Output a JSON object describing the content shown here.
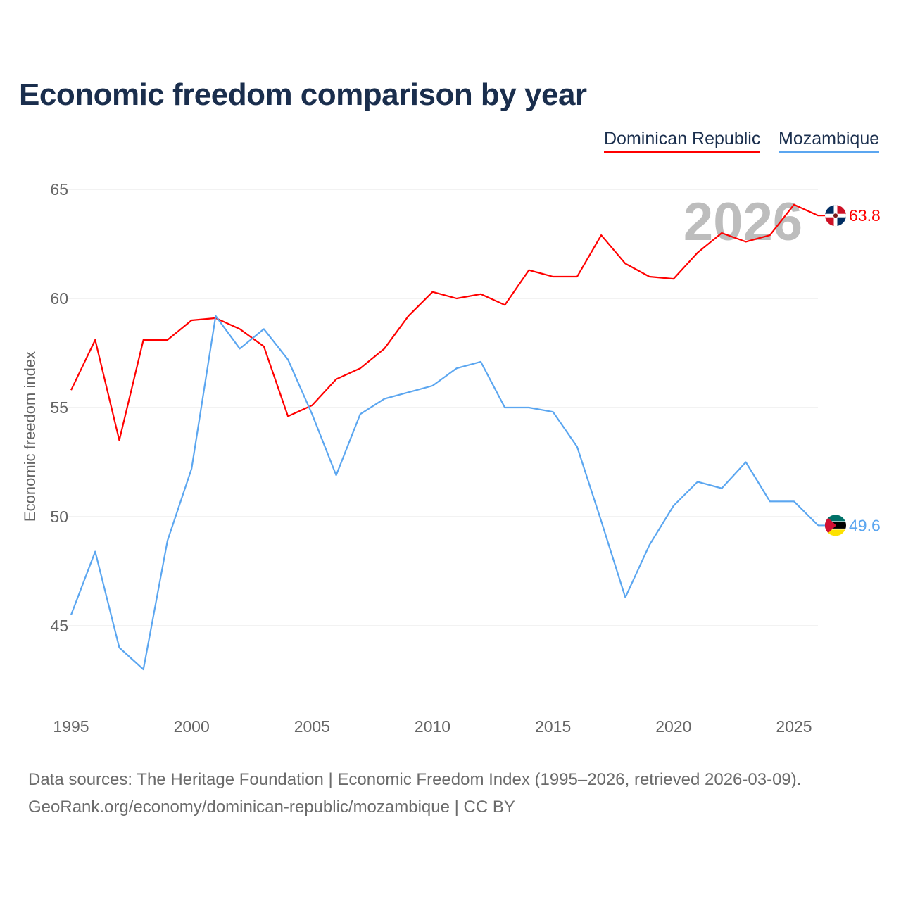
{
  "chart_data": {
    "type": "line",
    "title": "Economic freedom comparison by year",
    "xlabel": "",
    "ylabel": "Economic freedom index",
    "xlim": [
      1995,
      2026
    ],
    "ylim": [
      42,
      66
    ],
    "yticks": [
      45,
      50,
      55,
      60,
      65
    ],
    "xticks": [
      1995,
      2000,
      2005,
      2010,
      2015,
      2020,
      2025
    ],
    "grid": true,
    "legend_position": "top-right",
    "watermark_year": "2026",
    "x": [
      1995,
      1996,
      1997,
      1998,
      1999,
      2000,
      2001,
      2002,
      2003,
      2004,
      2005,
      2006,
      2007,
      2008,
      2009,
      2010,
      2011,
      2012,
      2013,
      2014,
      2015,
      2016,
      2017,
      2018,
      2019,
      2020,
      2021,
      2022,
      2023,
      2024,
      2025,
      2026
    ],
    "series": [
      {
        "name": "Dominican Republic",
        "color": "#ff0000",
        "end_label": "63.8",
        "values": [
          55.8,
          58.1,
          53.5,
          58.1,
          58.1,
          59.0,
          59.1,
          58.6,
          57.8,
          54.6,
          55.1,
          56.3,
          56.8,
          57.7,
          59.2,
          60.3,
          60.0,
          60.2,
          59.7,
          61.3,
          61.0,
          61.0,
          62.9,
          61.6,
          61.0,
          60.9,
          62.1,
          63.0,
          62.6,
          62.9,
          64.3,
          63.8
        ]
      },
      {
        "name": "Mozambique",
        "color": "#5ba6f0",
        "end_label": "49.6",
        "values": [
          45.5,
          48.4,
          44.0,
          43.0,
          48.9,
          52.2,
          59.2,
          57.7,
          58.6,
          57.2,
          54.7,
          51.9,
          54.7,
          55.4,
          55.7,
          56.0,
          56.8,
          57.1,
          55.0,
          55.0,
          54.8,
          53.2,
          49.8,
          46.3,
          48.7,
          50.5,
          51.6,
          51.3,
          52.5,
          50.7,
          50.7,
          49.6
        ]
      }
    ]
  },
  "footer": {
    "line1": "Data sources: The Heritage Foundation | Economic Freedom Index (1995–2026, retrieved 2026-03-09).",
    "line2": "GeoRank.org/economy/dominican-republic/mozambique | CC BY"
  }
}
